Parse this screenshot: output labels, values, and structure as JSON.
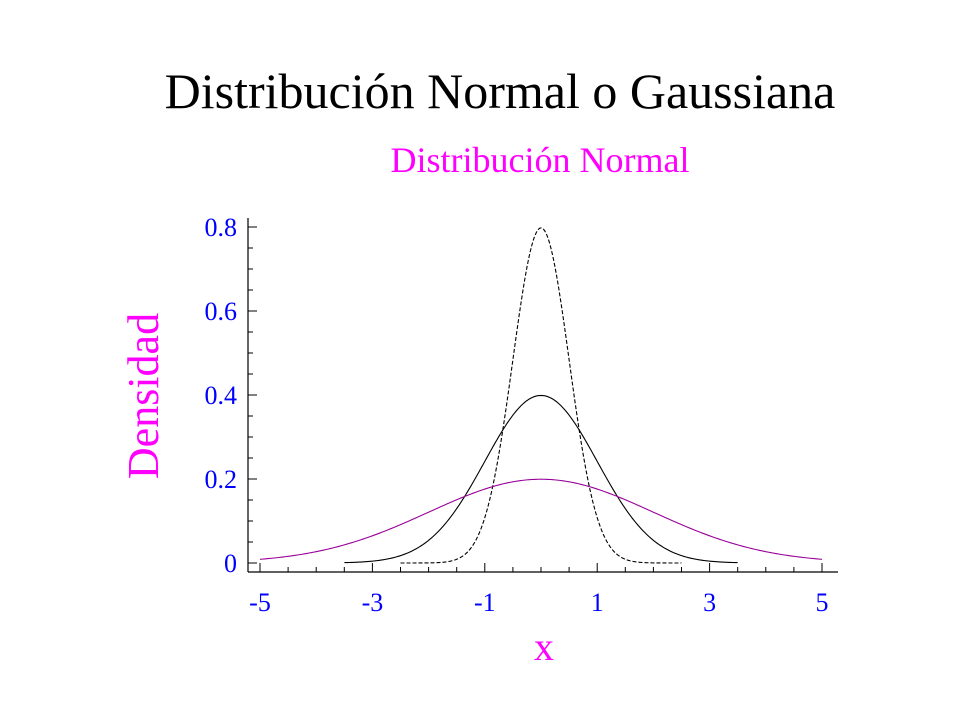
{
  "page": {
    "title": "Distribución Normal o Gaussiana"
  },
  "colors": {
    "magenta": "#ff00ff",
    "axis_blue": "#0000ff",
    "black": "#000000",
    "purple_curve": "#990099"
  },
  "chart_data": {
    "type": "line",
    "title": "Distribución Normal",
    "xlabel": "x",
    "ylabel": "Densidad",
    "xlim": [
      -5,
      5
    ],
    "ylim": [
      0,
      0.8
    ],
    "x_ticks": [
      -5,
      -3,
      -1,
      1,
      3,
      5
    ],
    "x_tick_labels": [
      "-5",
      "-3",
      "-1",
      "1",
      "3",
      "5"
    ],
    "y_ticks": [
      0,
      0.2,
      0.4,
      0.6,
      0.8
    ],
    "y_tick_labels": [
      "0",
      "0.2",
      "0.4",
      "0.6",
      "0.8"
    ],
    "grid": false,
    "series": [
      {
        "mean": 0,
        "sd": 0.5,
        "color": "#000000",
        "dash": "dashed",
        "x_range": [
          -2.5,
          2.5
        ]
      },
      {
        "mean": 0,
        "sd": 1,
        "color": "#000000",
        "dash": "solid",
        "x_range": [
          -3.5,
          3.5
        ]
      },
      {
        "mean": 0,
        "sd": 2,
        "color": "#990099",
        "dash": "solid",
        "x_range": [
          -5,
          5
        ]
      }
    ]
  }
}
